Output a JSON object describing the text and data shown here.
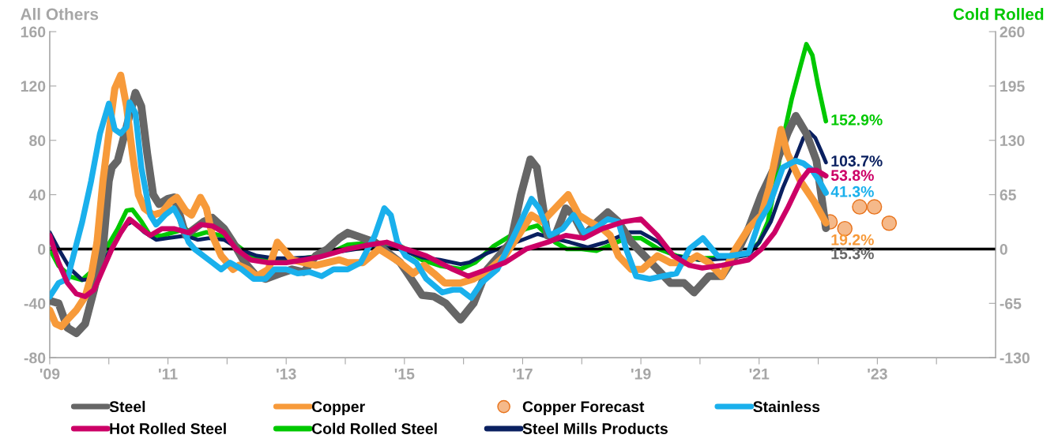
{
  "chart_data": {
    "type": "line",
    "ylabel": "All Others",
    "y2label": "Cold Rolled",
    "xlim": [
      2009,
      2025
    ],
    "xticks": [
      {
        "value": 2009,
        "label": "'09"
      },
      {
        "value": 2010,
        "label": null
      },
      {
        "value": 2011,
        "label": "'11"
      },
      {
        "value": 2012,
        "label": null
      },
      {
        "value": 2013,
        "label": "'13"
      },
      {
        "value": 2014,
        "label": null
      },
      {
        "value": 2015,
        "label": "'15"
      },
      {
        "value": 2016,
        "label": null
      },
      {
        "value": 2017,
        "label": "'17"
      },
      {
        "value": 2018,
        "label": null
      },
      {
        "value": 2019,
        "label": "'19"
      },
      {
        "value": 2020,
        "label": null
      },
      {
        "value": 2021,
        "label": "'21"
      },
      {
        "value": 2022,
        "label": null
      },
      {
        "value": 2023,
        "label": "'23"
      },
      {
        "value": 2024,
        "label": null
      }
    ],
    "ylim": [
      -80,
      160
    ],
    "yticks": [
      -80,
      -40,
      0,
      40,
      80,
      120,
      160
    ],
    "y2lim": [
      -130,
      260
    ],
    "y2ticks": [
      -130,
      -65,
      0,
      65,
      130,
      195,
      260
    ],
    "legend": "bottom",
    "line_style": "solid",
    "ref_lines": [
      {
        "axis": "y",
        "value": 0,
        "color": "#000000"
      }
    ],
    "series": [
      {
        "name": "Steel",
        "color": "#666666",
        "x": [
          2009.0,
          2009.15,
          2009.3,
          2009.45,
          2009.6,
          2009.75,
          2009.9,
          2010.0,
          2010.05,
          2010.15,
          2010.3,
          2010.45,
          2010.55,
          2010.65,
          2010.75,
          2010.85,
          2011.0,
          2011.1,
          2011.2,
          2011.3,
          2011.45,
          2011.6,
          2011.75,
          2011.95,
          2012.1,
          2012.3,
          2012.5,
          2012.65,
          2012.9,
          2013.1,
          2013.3,
          2013.5,
          2013.7,
          2013.9,
          2014.04,
          2014.5,
          2014.93,
          2015.3,
          2015.5,
          2015.7,
          2015.95,
          2016.17,
          2016.4,
          2016.6,
          2016.8,
          2016.97,
          2017.13,
          2017.24,
          2017.42,
          2017.55,
          2017.73,
          2017.86,
          2018.04,
          2018.26,
          2018.44,
          2018.62,
          2018.84,
          2019.06,
          2019.28,
          2019.5,
          2019.73,
          2019.9,
          2020.15,
          2020.37,
          2020.6,
          2020.82,
          2021.04,
          2021.26,
          2021.48,
          2021.62,
          2021.8,
          2021.97,
          2022.13
        ],
        "values": [
          -38,
          -40,
          -58,
          -62,
          -55,
          -30,
          0,
          50,
          60,
          65,
          90,
          115,
          105,
          70,
          40,
          33,
          37,
          38,
          25,
          10,
          15,
          20,
          23,
          15,
          5,
          -10,
          -20,
          -22,
          -18,
          -15,
          -17,
          -5,
          0,
          8,
          12,
          5,
          -10,
          -34,
          -35,
          -40,
          -52,
          -40,
          -15,
          -5,
          5,
          40,
          66,
          60,
          10,
          10,
          30,
          25,
          10,
          20,
          27,
          20,
          5,
          -5,
          -15,
          -25,
          -25,
          -32,
          -20,
          -20,
          -5,
          15,
          40,
          60,
          85,
          98,
          85,
          65,
          15.3
        ],
        "value_labels": [
          null,
          null,
          null,
          null,
          null,
          null,
          null,
          null,
          null,
          null,
          null,
          null,
          null,
          null,
          null,
          null,
          null,
          null,
          null,
          null,
          null,
          null,
          null,
          null,
          null,
          null,
          null,
          null,
          null,
          null,
          null,
          null,
          null,
          null,
          null,
          null,
          null,
          null,
          null,
          null,
          null,
          null,
          null,
          null,
          null,
          null,
          null,
          null,
          null,
          null,
          null,
          null,
          null,
          null,
          null,
          null,
          null,
          null,
          null,
          null,
          null,
          null,
          null,
          null,
          null,
          null,
          null,
          null,
          null,
          null,
          null,
          null,
          "15.3%"
        ]
      },
      {
        "name": "Copper",
        "color": "#f79a3a",
        "x": [
          2009.0,
          2009.1,
          2009.2,
          2009.3,
          2009.45,
          2009.6,
          2009.7,
          2009.8,
          2009.9,
          2010.0,
          2010.1,
          2010.2,
          2010.3,
          2010.4,
          2010.5,
          2010.6,
          2010.75,
          2010.9,
          2011.05,
          2011.15,
          2011.3,
          2011.4,
          2011.55,
          2011.65,
          2011.75,
          2011.9,
          2012.1,
          2012.2,
          2012.35,
          2012.5,
          2012.7,
          2012.85,
          2012.95,
          2013.1,
          2013.3,
          2013.5,
          2013.7,
          2013.9,
          2014.04,
          2014.3,
          2014.57,
          2014.75,
          2014.93,
          2015.15,
          2015.33,
          2015.5,
          2015.68,
          2015.95,
          2016.17,
          2016.44,
          2016.7,
          2016.93,
          2017.15,
          2017.33,
          2017.55,
          2017.77,
          2017.95,
          2018.13,
          2018.35,
          2018.48,
          2018.62,
          2018.84,
          2019.02,
          2019.28,
          2019.5,
          2019.77,
          2019.95,
          2020.15,
          2020.37,
          2020.6,
          2020.82,
          2021.04,
          2021.17,
          2021.37,
          2021.48,
          2021.7,
          2021.93,
          2022.13
        ],
        "values": [
          -45,
          -55,
          -57,
          -52,
          -45,
          -35,
          -20,
          5,
          50,
          85,
          118,
          128,
          105,
          70,
          40,
          30,
          25,
          27,
          35,
          38,
          28,
          25,
          38,
          30,
          10,
          -5,
          -15,
          -12,
          -15,
          -20,
          -15,
          5,
          0,
          -8,
          -10,
          -12,
          -10,
          -8,
          -10,
          -10,
          0,
          -5,
          -10,
          -18,
          -12,
          -18,
          -25,
          -25,
          -22,
          -15,
          -5,
          10,
          25,
          20,
          30,
          40,
          25,
          20,
          15,
          10,
          -5,
          -15,
          -15,
          -5,
          -10,
          -10,
          -5,
          -10,
          -20,
          0,
          15,
          25,
          45,
          88,
          70,
          50,
          35,
          19.2
        ],
        "value_labels": [
          null,
          null,
          null,
          null,
          null,
          null,
          null,
          null,
          null,
          null,
          null,
          null,
          null,
          null,
          null,
          null,
          null,
          null,
          null,
          null,
          null,
          null,
          null,
          null,
          null,
          null,
          null,
          null,
          null,
          null,
          null,
          null,
          null,
          null,
          null,
          null,
          null,
          null,
          null,
          null,
          null,
          null,
          null,
          null,
          null,
          null,
          null,
          null,
          null,
          null,
          null,
          null,
          null,
          null,
          null,
          null,
          null,
          null,
          null,
          null,
          null,
          null,
          null,
          null,
          null,
          null,
          null,
          null,
          null,
          null,
          null,
          null,
          null,
          null,
          null,
          null,
          null,
          "19.2%"
        ]
      },
      {
        "name": "Copper Forecast",
        "type": "scatter",
        "marker": "circle",
        "color": "#f5b98a",
        "x": [
          2022.2,
          2022.45,
          2022.7,
          2022.95,
          2023.2
        ],
        "values": [
          20,
          15,
          31,
          31,
          19
        ]
      },
      {
        "name": "Stainless",
        "color": "#1ab0ec",
        "x": [
          2009.0,
          2009.15,
          2009.3,
          2009.4,
          2009.55,
          2009.7,
          2009.85,
          2010.0,
          2010.1,
          2010.2,
          2010.3,
          2010.35,
          2010.45,
          2010.55,
          2010.7,
          2010.8,
          2010.95,
          2011.1,
          2011.2,
          2011.35,
          2011.45,
          2011.6,
          2011.75,
          2011.9,
          2012.05,
          2012.25,
          2012.45,
          2012.65,
          2012.8,
          2013.0,
          2013.2,
          2013.4,
          2013.6,
          2013.8,
          2014.04,
          2014.26,
          2014.5,
          2014.66,
          2014.77,
          2014.88,
          2015.02,
          2015.2,
          2015.37,
          2015.64,
          2015.82,
          2015.95,
          2016.13,
          2016.3,
          2016.57,
          2016.8,
          2017.02,
          2017.15,
          2017.28,
          2017.46,
          2017.68,
          2017.86,
          2018.04,
          2018.22,
          2018.44,
          2018.62,
          2018.75,
          2018.92,
          2019.15,
          2019.37,
          2019.6,
          2019.82,
          2020.05,
          2020.3,
          2020.5,
          2020.82,
          2021.0,
          2021.17,
          2021.4,
          2021.62,
          2021.75,
          2021.9,
          2022.02,
          2022.13
        ],
        "values": [
          -35,
          -25,
          -22,
          -5,
          20,
          50,
          85,
          107,
          88,
          85,
          90,
          108,
          100,
          60,
          25,
          18,
          25,
          30,
          22,
          5,
          0,
          -5,
          -10,
          -15,
          -10,
          -15,
          -22,
          -22,
          -15,
          -15,
          -18,
          -17,
          -20,
          -15,
          -15,
          -10,
          10,
          30,
          25,
          5,
          -5,
          -10,
          -22,
          -32,
          -30,
          -30,
          -36,
          -25,
          -15,
          5,
          25,
          37,
          30,
          10,
          15,
          25,
          12,
          15,
          22,
          20,
          0,
          -20,
          -22,
          -20,
          -18,
          0,
          8,
          -5,
          -5,
          -3,
          20,
          32,
          60,
          65,
          63,
          58,
          50,
          41.3
        ],
        "value_labels": [
          null,
          null,
          null,
          null,
          null,
          null,
          null,
          null,
          null,
          null,
          null,
          null,
          null,
          null,
          null,
          null,
          null,
          null,
          null,
          null,
          null,
          null,
          null,
          null,
          null,
          null,
          null,
          null,
          null,
          null,
          null,
          null,
          null,
          null,
          null,
          null,
          null,
          null,
          null,
          null,
          null,
          null,
          null,
          null,
          null,
          null,
          null,
          null,
          null,
          null,
          null,
          null,
          null,
          null,
          null,
          null,
          null,
          null,
          null,
          null,
          null,
          null,
          null,
          null,
          null,
          null,
          null,
          null,
          null,
          null,
          null,
          null,
          null,
          null,
          null,
          null,
          null,
          "41.3%"
        ]
      },
      {
        "name": "Hot Rolled Steel",
        "color": "#cc0066",
        "x": [
          2009.0,
          2009.15,
          2009.3,
          2009.45,
          2009.6,
          2009.75,
          2009.9,
          2010.05,
          2010.2,
          2010.35,
          2010.55,
          2010.7,
          2010.9,
          2011.1,
          2011.35,
          2011.55,
          2011.75,
          2011.95,
          2012.15,
          2012.4,
          2012.7,
          2013.0,
          2013.3,
          2013.55,
          2013.8,
          2014.04,
          2014.4,
          2014.7,
          2015.02,
          2015.37,
          2015.82,
          2016.08,
          2016.4,
          2016.7,
          2017.06,
          2017.42,
          2017.73,
          2018.04,
          2018.35,
          2018.7,
          2019.0,
          2019.28,
          2019.55,
          2019.82,
          2020.04,
          2020.37,
          2020.82,
          2021.04,
          2021.26,
          2021.48,
          2021.7,
          2021.84,
          2021.97,
          2022.13
        ],
        "values": [
          10,
          -10,
          -25,
          -33,
          -35,
          -30,
          -15,
          0,
          12,
          22,
          15,
          10,
          15,
          15,
          12,
          18,
          17,
          12,
          0,
          -8,
          -10,
          -10,
          -8,
          -6,
          -3,
          0,
          3,
          5,
          0,
          -5,
          -15,
          -20,
          -15,
          -10,
          0,
          5,
          10,
          8,
          15,
          20,
          22,
          10,
          -5,
          -12,
          -14,
          -12,
          -8,
          0,
          12,
          30,
          50,
          58,
          58,
          53.8
        ],
        "value_labels": [
          null,
          null,
          null,
          null,
          null,
          null,
          null,
          null,
          null,
          null,
          null,
          null,
          null,
          null,
          null,
          null,
          null,
          null,
          null,
          null,
          null,
          null,
          null,
          null,
          null,
          null,
          null,
          null,
          null,
          null,
          null,
          null,
          null,
          null,
          null,
          null,
          null,
          null,
          null,
          null,
          null,
          null,
          null,
          null,
          null,
          null,
          null,
          null,
          null,
          null,
          null,
          null,
          null,
          "53.8%"
        ]
      },
      {
        "name": "Cold Rolled Steel",
        "axis": "y2",
        "color": "#00c800",
        "x": [
          2009.0,
          2009.15,
          2009.35,
          2009.55,
          2009.75,
          2009.95,
          2010.15,
          2010.3,
          2010.4,
          2010.55,
          2010.7,
          2010.9,
          2011.1,
          2011.3,
          2011.45,
          2011.65,
          2011.9,
          2012.1,
          2012.4,
          2012.7,
          2013.0,
          2013.3,
          2013.6,
          2013.8,
          2014.04,
          2014.5,
          2014.9,
          2015.3,
          2015.6,
          2015.95,
          2016.2,
          2016.5,
          2016.8,
          2017.05,
          2017.25,
          2017.55,
          2017.75,
          2018.0,
          2018.25,
          2018.5,
          2018.75,
          2019.0,
          2019.3,
          2019.6,
          2020.0,
          2020.1,
          2020.5,
          2020.82,
          2021.0,
          2021.15,
          2021.26,
          2021.4,
          2021.55,
          2021.7,
          2021.8,
          2021.9,
          2022.0,
          2022.13
        ],
        "values": [
          0,
          -20,
          -33,
          -37,
          -24,
          0,
          24,
          46,
          47,
          33,
          16,
          16,
          20,
          24,
          16,
          20,
          16,
          8,
          -8,
          -13,
          -13,
          -11,
          -8,
          -3,
          5,
          8,
          5,
          -13,
          -20,
          -24,
          -16,
          3,
          16,
          24,
          28,
          8,
          0,
          0,
          -2,
          5,
          13,
          13,
          0,
          -8,
          -13,
          -11,
          -10,
          -5,
          8,
          33,
          73,
          130,
          179,
          219,
          245,
          232,
          195,
          152.9
        ],
        "value_labels": [
          null,
          null,
          null,
          null,
          null,
          null,
          null,
          null,
          null,
          null,
          null,
          null,
          null,
          null,
          null,
          null,
          null,
          null,
          null,
          null,
          null,
          null,
          null,
          null,
          null,
          null,
          null,
          null,
          null,
          null,
          null,
          null,
          null,
          null,
          null,
          null,
          null,
          null,
          null,
          null,
          null,
          null,
          null,
          null,
          null,
          null,
          null,
          null,
          null,
          null,
          null,
          null,
          null,
          null,
          null,
          null,
          null,
          "152.9%"
        ]
      },
      {
        "name": "Steel Mills Products",
        "axis": "y2",
        "color": "#0a2060",
        "x": [
          2009.0,
          2009.15,
          2009.35,
          2009.55,
          2009.7,
          2009.9,
          2010.1,
          2010.3,
          2010.4,
          2010.6,
          2010.8,
          2011.0,
          2011.3,
          2011.5,
          2011.7,
          2011.95,
          2012.2,
          2012.5,
          2012.8,
          2013.1,
          2013.4,
          2013.7,
          2014.0,
          2014.2,
          2014.5,
          2014.9,
          2015.3,
          2015.6,
          2015.95,
          2016.1,
          2016.4,
          2016.7,
          2017.0,
          2017.25,
          2017.5,
          2017.8,
          2018.1,
          2018.4,
          2018.8,
          2019.0,
          2019.3,
          2019.55,
          2020.0,
          2020.1,
          2020.5,
          2020.82,
          2021.0,
          2021.2,
          2021.4,
          2021.6,
          2021.75,
          2021.85,
          2021.95,
          2022.05,
          2022.13
        ],
        "values": [
          20,
          0,
          -24,
          -37,
          -36,
          -16,
          8,
          29,
          33,
          20,
          11,
          13,
          16,
          11,
          13,
          11,
          0,
          -8,
          -11,
          -11,
          -10,
          -5,
          -2,
          0,
          3,
          0,
          -10,
          -13,
          -18,
          -16,
          -5,
          3,
          11,
          18,
          13,
          8,
          2,
          8,
          20,
          20,
          8,
          -8,
          -13,
          -13,
          -11,
          -7,
          8,
          33,
          73,
          106,
          133,
          140,
          133,
          117,
          103.7
        ],
        "value_labels": [
          null,
          null,
          null,
          null,
          null,
          null,
          null,
          null,
          null,
          null,
          null,
          null,
          null,
          null,
          null,
          null,
          null,
          null,
          null,
          null,
          null,
          null,
          null,
          null,
          null,
          null,
          null,
          null,
          null,
          null,
          null,
          null,
          null,
          null,
          null,
          null,
          null,
          null,
          null,
          null,
          null,
          null,
          null,
          null,
          null,
          null,
          null,
          null,
          null,
          null,
          null,
          null,
          null,
          null,
          "103.7%"
        ]
      }
    ]
  }
}
